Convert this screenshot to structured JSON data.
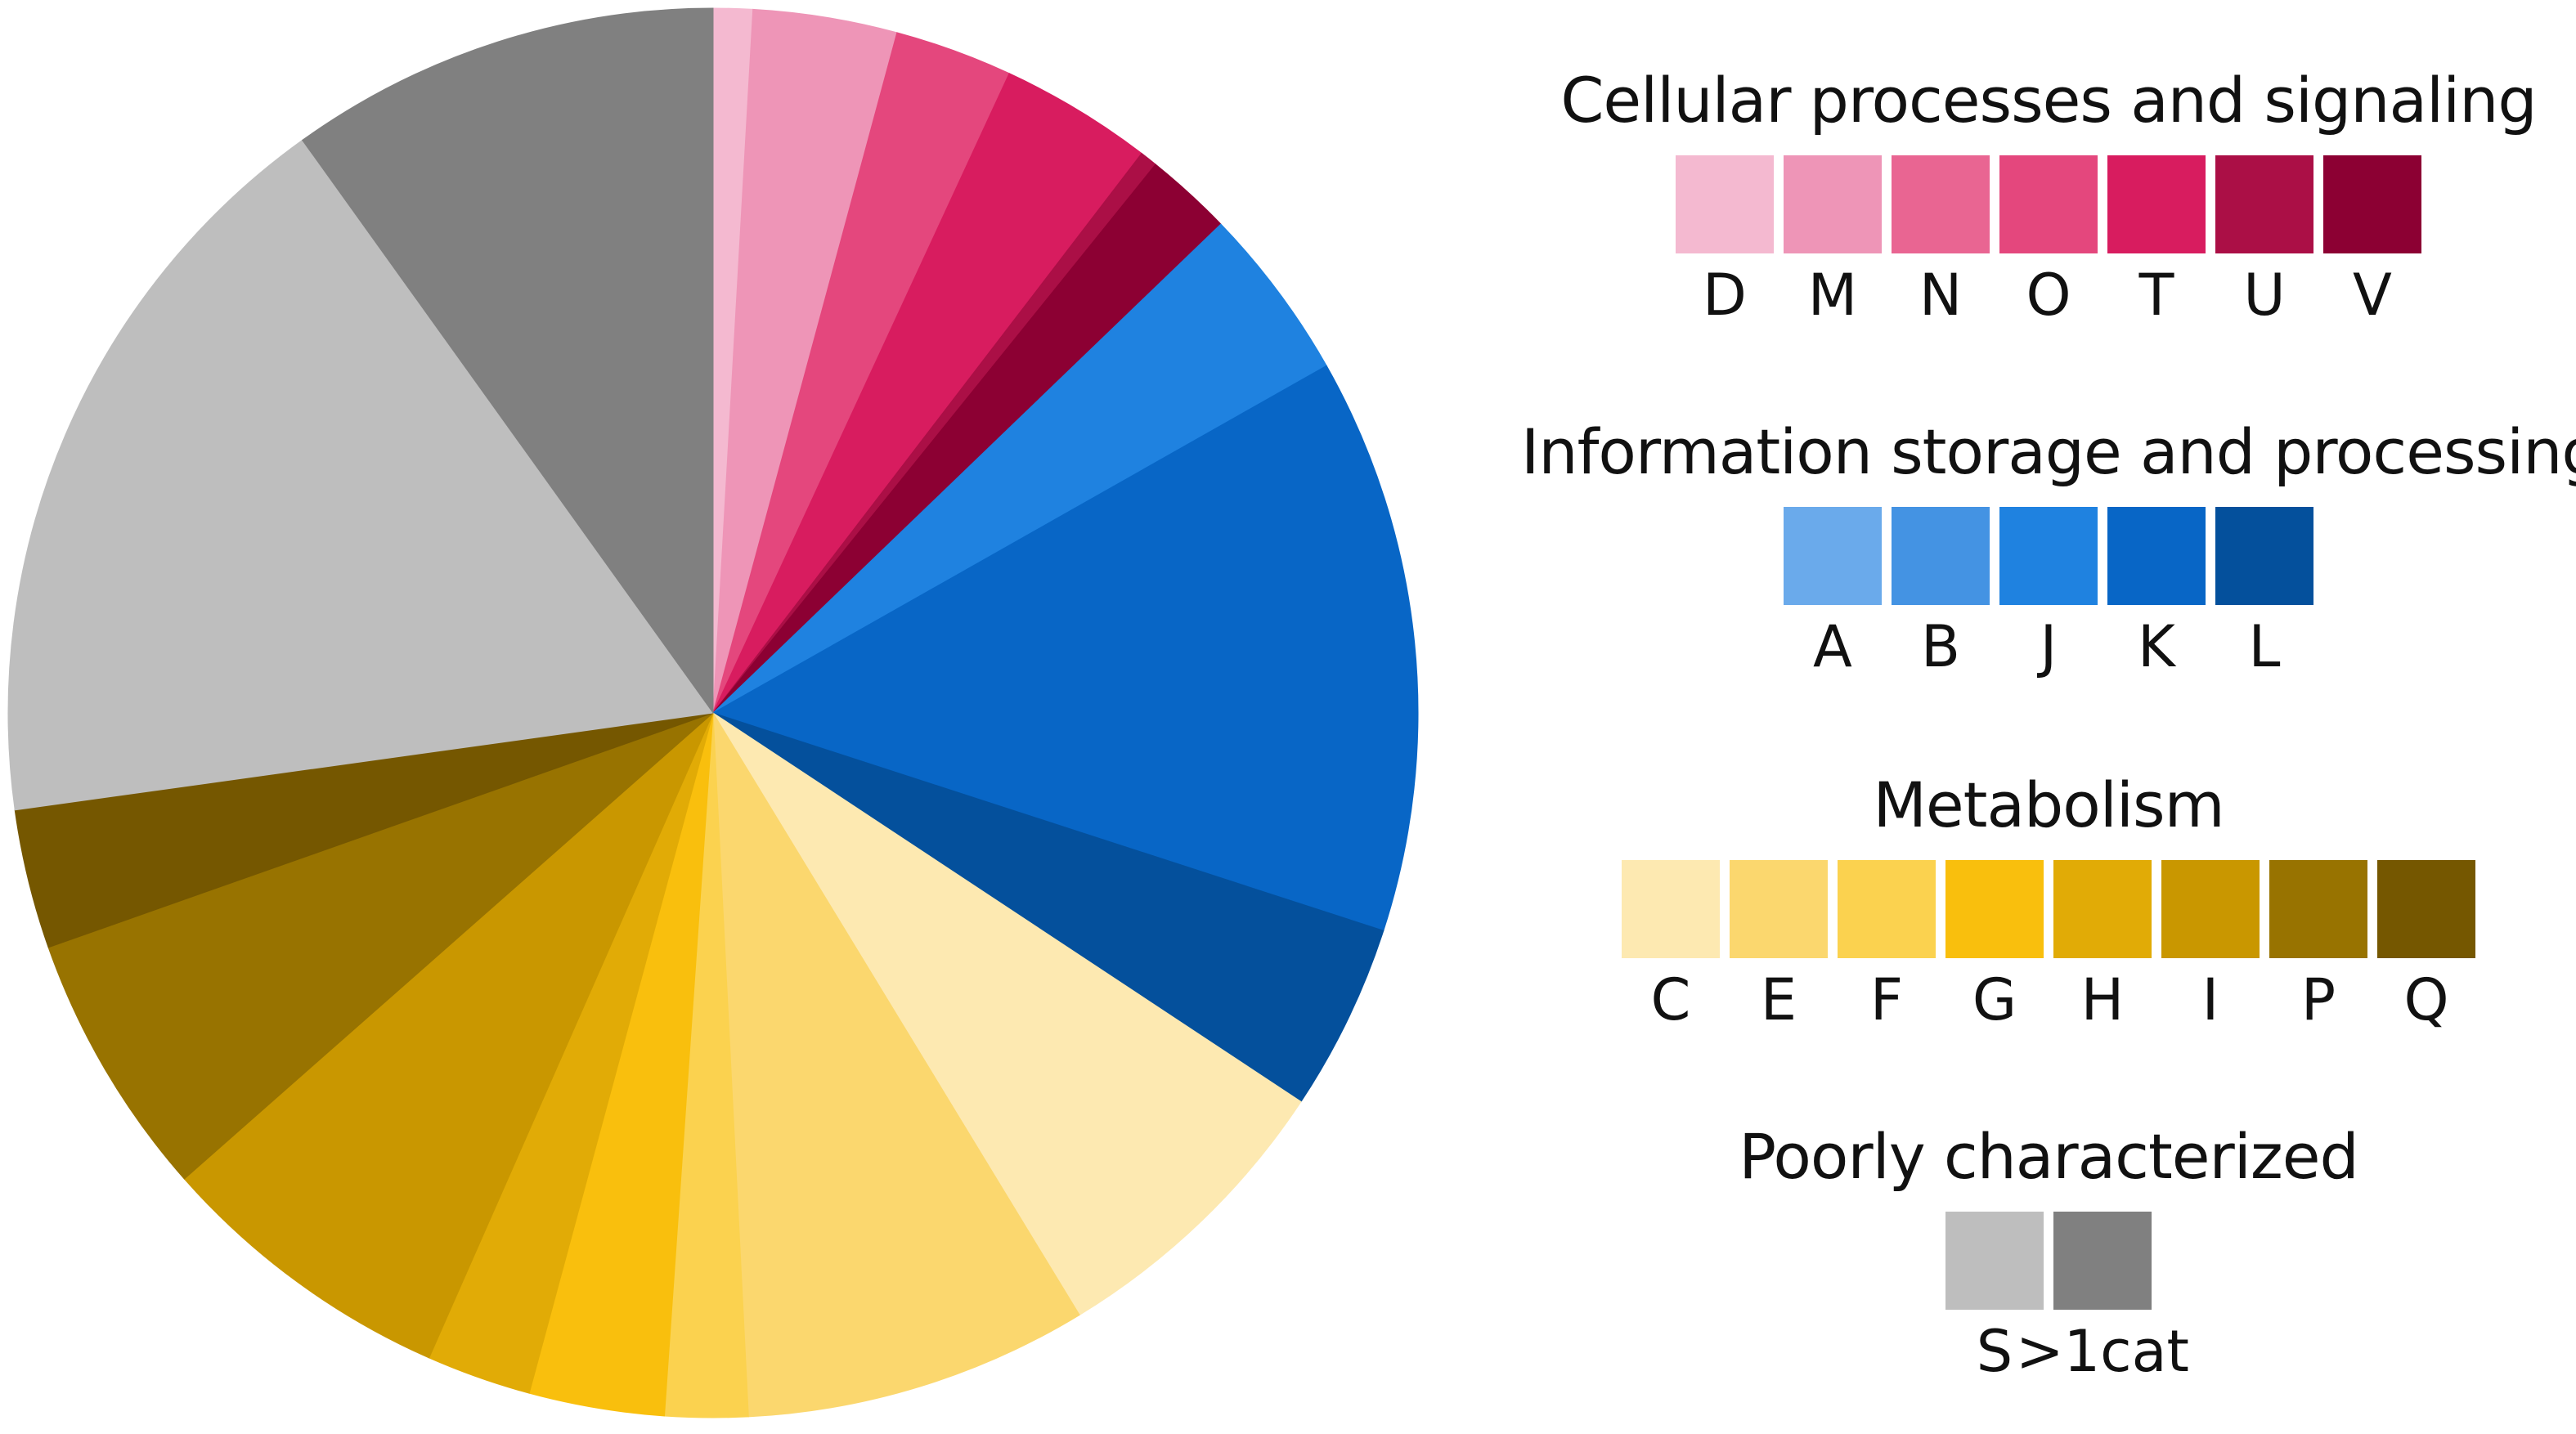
{
  "chart_data": {
    "type": "pie",
    "direction": "clockwise",
    "start_angle": "12 o'clock",
    "slices": [
      {
        "label": "D",
        "value": 0.9,
        "color": "#F4B9D0"
      },
      {
        "label": "M",
        "value": 3.3,
        "color": "#EE95B7"
      },
      {
        "label": "N",
        "value": 2.7,
        "color": "#E4477D"
      },
      {
        "label": "O",
        "value": 3.5,
        "color": "#D81C5F"
      },
      {
        "label": "U",
        "value": 0.4,
        "color": "#AB0F46"
      },
      {
        "label": "V",
        "value": 2.0,
        "color": "#8C0033"
      },
      {
        "label": "J",
        "value": 4.0,
        "color": "#1F82E0"
      },
      {
        "label": "K",
        "value": 13.2,
        "color": "#0866C6"
      },
      {
        "label": "L",
        "value": 4.3,
        "color": "#04509C"
      },
      {
        "label": "C",
        "value": 7.0,
        "color": "#FDE9B1"
      },
      {
        "label": "E",
        "value": 7.9,
        "color": "#FBD76E"
      },
      {
        "label": "F",
        "value": 1.9,
        "color": "#FBD24F"
      },
      {
        "label": "G",
        "value": 3.1,
        "color": "#F9BF0D"
      },
      {
        "label": "H",
        "value": 2.4,
        "color": "#E1AB06"
      },
      {
        "label": "I",
        "value": 6.9,
        "color": "#C99700"
      },
      {
        "label": "P",
        "value": 6.1,
        "color": "#987300"
      },
      {
        "label": "Q",
        "value": 3.2,
        "color": "#755700"
      },
      {
        "label": "S",
        "value": 17.3,
        "color": "#BEBEBE"
      },
      {
        "label": ">1cat",
        "value": 9.9,
        "color": "#808080"
      }
    ]
  },
  "legend": {
    "groups": [
      {
        "title": "Cellular processes and signaling",
        "items": [
          {
            "label": "D",
            "color": "#F4B9D0"
          },
          {
            "label": "M",
            "color": "#EE95B7"
          },
          {
            "label": "N",
            "color": "#E96592"
          },
          {
            "label": "O",
            "color": "#E4477D"
          },
          {
            "label": "T",
            "color": "#D81C5F"
          },
          {
            "label": "U",
            "color": "#AB0F46"
          },
          {
            "label": "V",
            "color": "#8C0033"
          }
        ]
      },
      {
        "title": "Information storage and processing",
        "items": [
          {
            "label": "A",
            "color": "#6AAAEB"
          },
          {
            "label": "B",
            "color": "#4493E3"
          },
          {
            "label": "J",
            "color": "#1F82E0"
          },
          {
            "label": "K",
            "color": "#0866C6"
          },
          {
            "label": "L",
            "color": "#04509C"
          }
        ]
      },
      {
        "title": "Metabolism",
        "items": [
          {
            "label": "C",
            "color": "#FDE9B1"
          },
          {
            "label": "E",
            "color": "#FBD76E"
          },
          {
            "label": "F",
            "color": "#FBD24F"
          },
          {
            "label": "G",
            "color": "#F9BF0D"
          },
          {
            "label": "H",
            "color": "#E1AB06"
          },
          {
            "label": "I",
            "color": "#C99700"
          },
          {
            "label": "P",
            "color": "#987300"
          },
          {
            "label": "Q",
            "color": "#755700"
          }
        ]
      },
      {
        "title": "Poorly characterized",
        "items": [
          {
            "label": "S",
            "color": "#BEBEBE"
          },
          {
            "label": ">1cat",
            "color": "#808080"
          }
        ]
      }
    ]
  }
}
